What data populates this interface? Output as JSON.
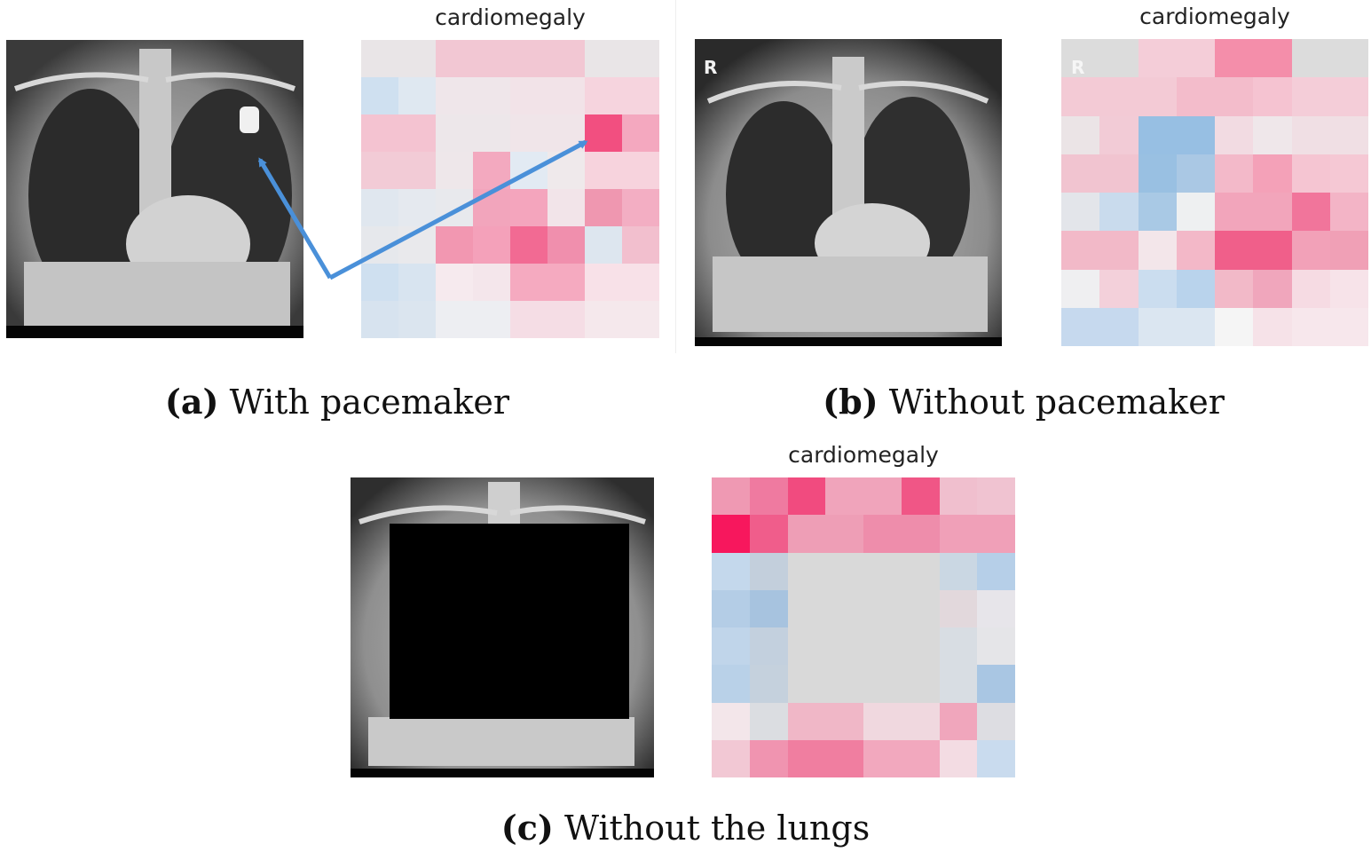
{
  "panels": {
    "a": {
      "heatmap_title": "cardiomegaly",
      "caption_label": "(a)",
      "caption_text": "With pacemaker",
      "heatmap_rows": [
        [
          "#e9e5e7",
          "#e9e5e7",
          "#f2c7d3",
          "#f2c7d3",
          "#f2c7d3",
          "#f2c7d3",
          "#e9e5e7",
          "#e9e5e7"
        ],
        [
          "#cfe0f0",
          "#dfe8f1",
          "#efe6ea",
          "#efe6ea",
          "#f2e3e8",
          "#f2e3e8",
          "#f6d4de",
          "#f6d4de"
        ],
        [
          "#f4c3d1",
          "#f4c3d1",
          "#ede7ea",
          "#ede7ea",
          "#f0e5e9",
          "#f0e5e9",
          "#f24f80",
          "#f4a8bf"
        ],
        [
          "#f2cbd6",
          "#f2cbd6",
          "#eee7ea",
          "#f3a9bf",
          "#e2eaf3",
          "#efe9eb",
          "#f7d3dd",
          "#f7d3dd"
        ],
        [
          "#e0e7ef",
          "#e5e9ef",
          "#e8e9ed",
          "#f2a5bc",
          "#f4a5bd",
          "#f2e4e9",
          "#ef97b0",
          "#f3aec3"
        ],
        [
          "#e6e8ec",
          "#e9e9ec",
          "#f297b1",
          "#f4a1ba",
          "#f26a93",
          "#f08fad",
          "#dde6ef",
          "#f2bfce"
        ],
        [
          "#cfe0f0",
          "#d8e4f0",
          "#f6eaee",
          "#f4e6eb",
          "#f5aac0",
          "#f5aac0",
          "#f8e1e8",
          "#f8e1e8"
        ],
        [
          "#d7e3ef",
          "#dbe5ef",
          "#edeef2",
          "#edeef2",
          "#f5dde5",
          "#f5dde5",
          "#f5e8ec",
          "#f5e8ec"
        ]
      ]
    },
    "b": {
      "heatmap_title": "cardiomegaly",
      "caption_label": "(b)",
      "caption_text": "Without pacemaker",
      "r_marker": "R",
      "heatmap_rows": [
        [
          "#dcdcdc",
          "#dcdcdc",
          "#f4cdd8",
          "#f4cdd8",
          "#f48eaa",
          "#f48eaa",
          "#dcdcdc",
          "#dcdcdc"
        ],
        [
          "#f3cad5",
          "#f3cad5",
          "#f3cad5",
          "#f3bccb",
          "#f3bccb",
          "#f5c3d1",
          "#f4cdd8",
          "#f4cdd8"
        ],
        [
          "#ebe4e6",
          "#f2cbd6",
          "#97bfe3",
          "#97bfe3",
          "#f2dbe2",
          "#efe7ea",
          "#f0dfe4",
          "#f0dfe4"
        ],
        [
          "#f1c4d0",
          "#f1c4d0",
          "#99c0e2",
          "#aac8e4",
          "#f3b9c9",
          "#f4a1b8",
          "#f5c5d2",
          "#f5c8d4"
        ],
        [
          "#e3e5ea",
          "#c9dbed",
          "#a9c9e5",
          "#eef0f1",
          "#f2a5bb",
          "#f2a5bb",
          "#f1759b",
          "#f3b4c6"
        ],
        [
          "#f2b9c8",
          "#f2b9c8",
          "#f3e6ea",
          "#f3b8c8",
          "#f05f8a",
          "#f05f8a",
          "#f2a1b8",
          "#f0a0b6"
        ],
        [
          "#efeff1",
          "#f3d0da",
          "#cbddef",
          "#b9d3ec",
          "#f2b9c8",
          "#f0a6bc",
          "#f6dbe3",
          "#f7e3e9"
        ],
        [
          "#c6d9ee",
          "#c6d9ee",
          "#dbe6f1",
          "#dbe6f1",
          "#f5f5f5",
          "#f6e2e8",
          "#f7e7ec",
          "#f7e7ec"
        ]
      ]
    },
    "c": {
      "heatmap_title": "cardiomegaly",
      "caption_label": "(c)",
      "caption_text": "Without the lungs",
      "heatmap_rows": [
        [
          "#ef99b3",
          "#ef7aa0",
          "#f14b7f",
          "#f0a4bb",
          "#f0a4bb",
          "#f05686",
          "#f0bfce",
          "#f0c3d1"
        ],
        [
          "#f7175d",
          "#f05d8b",
          "#ee9eb6",
          "#ee9eb6",
          "#ee8dab",
          "#ee8dab",
          "#f0a0b8",
          "#f0a0b8"
        ],
        [
          "#c4d8ec",
          "#c3cfdc",
          "#d9d9d9",
          "#d9d9d9",
          "#d9d9d9",
          "#d9d9d9",
          "#cad7e3",
          "#b6cfe8"
        ],
        [
          "#b4cde6",
          "#a7c3df",
          "#d9d9d9",
          "#d9d9d9",
          "#d9d9d9",
          "#d9d9d9",
          "#e2d8dc",
          "#e7e5ea"
        ],
        [
          "#c0d5ea",
          "#c3d0de",
          "#d9d9d9",
          "#d9d9d9",
          "#d9d9d9",
          "#d9d9d9",
          "#d8dde3",
          "#e5e5e8"
        ],
        [
          "#b9d1e8",
          "#c5d1dd",
          "#d9d9d9",
          "#d9d9d9",
          "#d9d9d9",
          "#d9d9d9",
          "#d8dde3",
          "#a9c6e3"
        ],
        [
          "#f3e6ea",
          "#dbdde1",
          "#f0b7c7",
          "#f0b7c7",
          "#f0d8df",
          "#f0d8df",
          "#f0a6bc",
          "#dddde2"
        ],
        [
          "#f2c8d4",
          "#f094b0",
          "#f07ea0",
          "#f07ea0",
          "#f2a8be",
          "#f2a8be",
          "#f3dce3",
          "#c9dbee"
        ]
      ]
    }
  }
}
